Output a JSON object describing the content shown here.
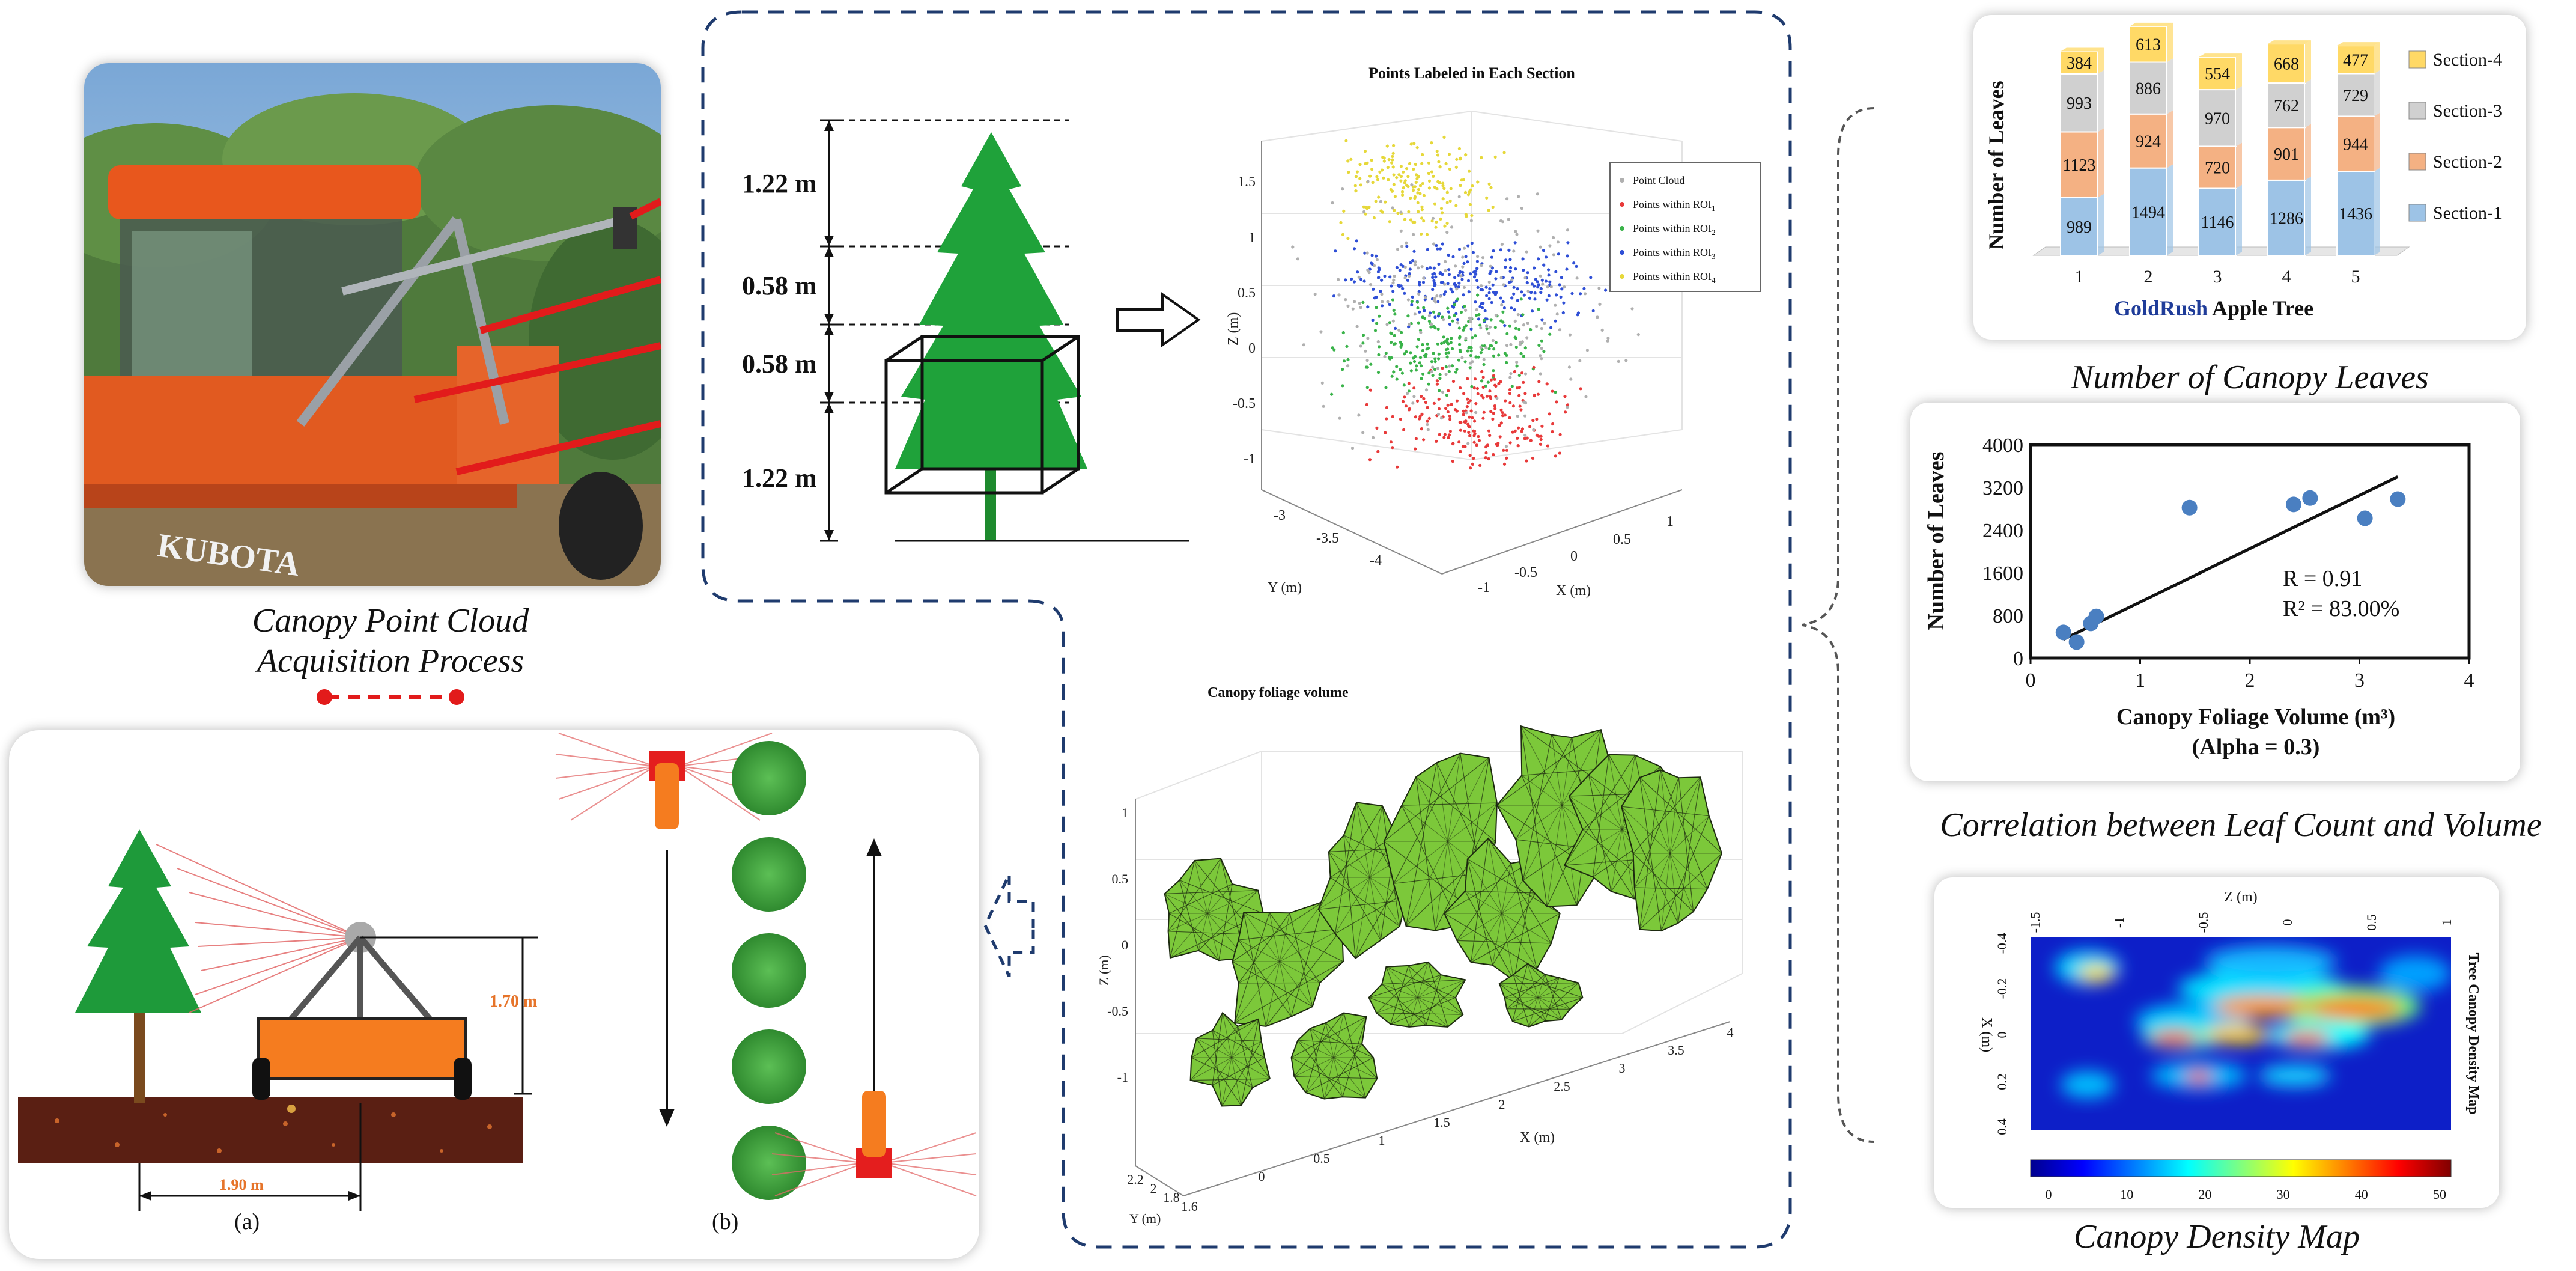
{
  "captions": {
    "acquisition_line1": "Canopy Point Cloud",
    "acquisition_line2": "Acquisition Process",
    "leaves": "Number of Canopy Leaves",
    "correlation": "Correlation between Leaf Count and Volume",
    "density": "Canopy Density Map"
  },
  "photo": {
    "brand": "KUBOTA"
  },
  "scan_setup": {
    "height_label": "1.70 m",
    "width_label": "1.90 m",
    "panel_a": "(a)",
    "panel_b": "(b)"
  },
  "tree_sections": {
    "heights": [
      "1.22 m",
      "0.58 m",
      "0.58 m",
      "1.22 m"
    ]
  },
  "points_plot": {
    "title": "Points Labeled in Each Section",
    "zlabel": "Z (m)",
    "xlabel": "X (m)",
    "ylabel": "Y (m)",
    "z_ticks": [
      "1.5",
      "1",
      "0.5",
      "0",
      "-0.5",
      "-1"
    ],
    "x_ticks": [
      "-1",
      "-0.5",
      "0",
      "0.5",
      "1"
    ],
    "y_ticks": [
      "-3",
      "-3.5",
      "-4"
    ],
    "legend": [
      {
        "label": "Point Cloud",
        "color": "#b0b0b0"
      },
      {
        "label": "Points within ROI",
        "sub": "1",
        "color": "#e83a3a"
      },
      {
        "label": "Points within ROI",
        "sub": "2",
        "color": "#3ab34a"
      },
      {
        "label": "Points within ROI",
        "sub": "3",
        "color": "#2f4fd6"
      },
      {
        "label": "Points within ROI",
        "sub": "4",
        "color": "#e6d83a"
      }
    ]
  },
  "volume_plot": {
    "title": "Canopy foliage volume",
    "zlabel": "Z (m)",
    "xlabel": "X (m)",
    "ylabel": "Y (m)",
    "z_ticks": [
      "1",
      "0.5",
      "0",
      "-0.5",
      "-1"
    ],
    "x_ticks": [
      "0",
      "0.5",
      "1",
      "1.5",
      "2",
      "2.5",
      "3",
      "3.5",
      "4"
    ],
    "y_ticks": [
      "2.2",
      "2",
      "1.8",
      "1.6"
    ]
  },
  "chart_data": [
    {
      "type": "bar",
      "stacked": true,
      "ylabel": "Number of Leaves",
      "xlabel_bold": "GoldRush",
      "xlabel_rest": " Apple Tree",
      "categories": [
        "1",
        "2",
        "3",
        "4",
        "5"
      ],
      "series": [
        {
          "name": "Section-1",
          "values": [
            989,
            1494,
            1146,
            1286,
            1436
          ],
          "color": "#9dc3e6"
        },
        {
          "name": "Section-2",
          "values": [
            1123,
            924,
            720,
            901,
            944
          ],
          "color": "#f4b183"
        },
        {
          "name": "Section-3",
          "values": [
            993,
            886,
            970,
            762,
            729
          ],
          "color": "#d0d0d0"
        },
        {
          "name": "Section-4",
          "values": [
            384,
            613,
            554,
            668,
            477
          ],
          "color": "#ffd966"
        }
      ],
      "legend_position": "right"
    },
    {
      "type": "scatter",
      "ylabel": "Number of Leaves",
      "xlabel": "Canopy Foliage Volume (m³)",
      "xlabel2": "(Alpha = 0.3)",
      "xlim": [
        0,
        4
      ],
      "ylim": [
        0,
        4000
      ],
      "x_ticks": [
        0,
        1,
        2,
        3,
        4
      ],
      "y_ticks": [
        0,
        800,
        1600,
        2400,
        3200,
        4000
      ],
      "points": [
        {
          "x": 0.3,
          "y": 480
        },
        {
          "x": 0.42,
          "y": 300
        },
        {
          "x": 0.55,
          "y": 650
        },
        {
          "x": 0.6,
          "y": 780
        },
        {
          "x": 1.45,
          "y": 2820
        },
        {
          "x": 2.4,
          "y": 2880
        },
        {
          "x": 2.55,
          "y": 3000
        },
        {
          "x": 3.05,
          "y": 2620
        },
        {
          "x": 3.35,
          "y": 2980
        }
      ],
      "trendline": {
        "x": [
          0.3,
          3.35
        ],
        "y": [
          350,
          3400
        ]
      },
      "annotation_r": "R = 0.91",
      "annotation_r2": "R² = 83.00%",
      "marker_color": "#4a7fc1"
    },
    {
      "type": "heatmap",
      "title_right": "Tree Canopy Density Map",
      "xlabel_top": "Z (m)",
      "ylabel": "X (m)",
      "x_ticks": [
        "-1.5",
        "-1",
        "-0.5",
        "0",
        "0.5",
        "1"
      ],
      "y_ticks": [
        "-0.4",
        "-0.2",
        "0",
        "0.2",
        "0.4"
      ],
      "colorbar_ticks": [
        "0",
        "10",
        "20",
        "30",
        "40",
        "50"
      ]
    }
  ]
}
